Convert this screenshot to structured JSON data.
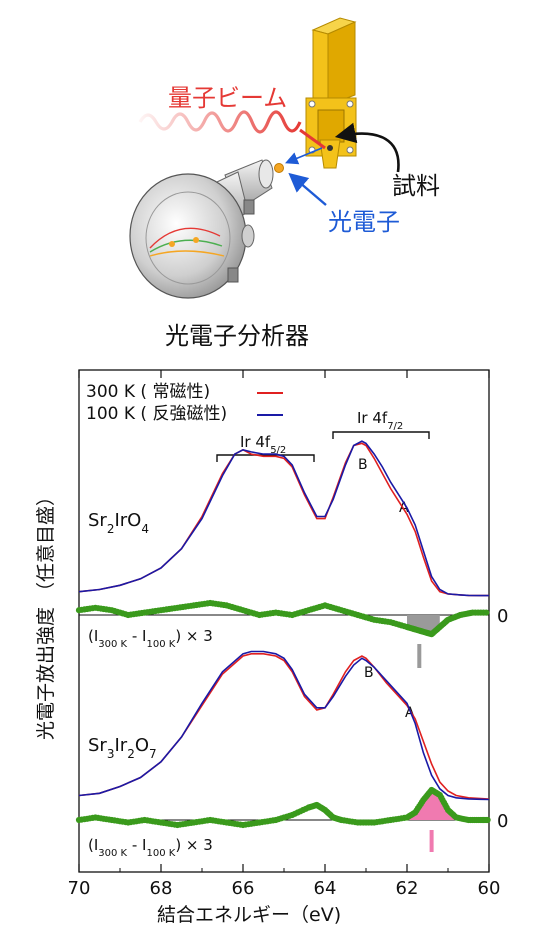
{
  "diagram": {
    "beam_label": "量子ビーム",
    "sample_label": "試料",
    "photoelectron_label": "光電子",
    "analyzer_label": "光電子分析器",
    "colors": {
      "beam": "#e53935",
      "photoelectron": "#1e5bd6",
      "holder": "#f3c21a"
    }
  },
  "chart_data": {
    "type": "line",
    "xlabel": "結合エネルギー（eV)",
    "ylabel": "光電子放出強度 （任意目盛）",
    "xlim": [
      70,
      60
    ],
    "xticks": [
      "70",
      "68",
      "66",
      "64",
      "62",
      "60"
    ],
    "x_reversed": true,
    "grid": false,
    "legend": {
      "placement": "top-left",
      "entries": [
        {
          "label": "300 K ( 常磁性)",
          "color": "#e02020"
        },
        {
          "label": "100 K ( 反強磁性)",
          "color": "#1a1aa6"
        }
      ]
    },
    "peak_labels": {
      "ir_4f52": "Ir 4f",
      "ir_4f52_sub": "5/2",
      "ir_4f72": "Ir 4f",
      "ir_4f72_sub": "7/2"
    },
    "panels": [
      {
        "compound": {
          "main1": "Sr",
          "sub1": "2",
          "main2": "IrO",
          "sub2": "4",
          "main3": "",
          "sub3": ""
        },
        "peak_a": "A",
        "peak_b": "B",
        "diff_label": {
          "p1": "(I",
          "s1": "300 K",
          "p2": " - I",
          "s2": "100 K",
          "p3": ") × 3"
        },
        "zero_label": "0",
        "diff_fill_color": "#9a9a9a",
        "series": [
          {
            "name": "300 K ( 常磁性)",
            "color": "#e02020",
            "x": [
              70,
              69.5,
              69,
              68.5,
              68,
              67.5,
              67,
              66.5,
              66.2,
              66,
              65.8,
              65.5,
              65.2,
              65,
              64.8,
              64.5,
              64.2,
              64,
              63.8,
              63.5,
              63.3,
              63.1,
              63,
              62.8,
              62.6,
              62.4,
              62.2,
              62,
              61.8,
              61.6,
              61.4,
              61.2,
              61,
              60.7,
              60.5,
              60.2,
              60
            ],
            "y": [
              0.02,
              0.03,
              0.05,
              0.08,
              0.13,
              0.22,
              0.37,
              0.57,
              0.66,
              0.68,
              0.66,
              0.65,
              0.65,
              0.64,
              0.6,
              0.47,
              0.36,
              0.36,
              0.46,
              0.62,
              0.7,
              0.71,
              0.7,
              0.64,
              0.57,
              0.5,
              0.44,
              0.38,
              0.3,
              0.18,
              0.07,
              0.02,
              0.01,
              0.005,
              0.003,
              0.002,
              0.002
            ]
          },
          {
            "name": "100 K ( 反強磁性)",
            "color": "#1a1aa6",
            "x": [
              70,
              69.5,
              69,
              68.5,
              68,
              67.5,
              67,
              66.5,
              66.2,
              66,
              65.8,
              65.5,
              65.2,
              65,
              64.8,
              64.5,
              64.2,
              64,
              63.8,
              63.5,
              63.3,
              63.1,
              63,
              62.8,
              62.6,
              62.4,
              62.2,
              62,
              61.8,
              61.6,
              61.4,
              61.2,
              61,
              60.7,
              60.5,
              60.2,
              60
            ],
            "y": [
              0.02,
              0.03,
              0.05,
              0.08,
              0.13,
              0.22,
              0.36,
              0.56,
              0.66,
              0.68,
              0.67,
              0.66,
              0.66,
              0.65,
              0.61,
              0.48,
              0.37,
              0.37,
              0.45,
              0.61,
              0.7,
              0.72,
              0.71,
              0.66,
              0.6,
              0.53,
              0.47,
              0.41,
              0.33,
              0.21,
              0.09,
              0.03,
              0.01,
              0.005,
              0.003,
              0.002,
              0.002
            ]
          }
        ],
        "diff": {
          "x": [
            70,
            69.6,
            69.2,
            68.8,
            68.4,
            68,
            67.6,
            67.2,
            66.8,
            66.4,
            66,
            65.6,
            65.2,
            64.8,
            64.4,
            64,
            63.6,
            63.2,
            62.8,
            62.4,
            62,
            61.8,
            61.6,
            61.4,
            61.2,
            61,
            60.7,
            60.4,
            60
          ],
          "y": [
            0.02,
            0.03,
            0.02,
            0.0,
            0.01,
            0.02,
            0.03,
            0.04,
            0.05,
            0.04,
            0.02,
            0.0,
            0.01,
            0.0,
            0.02,
            0.04,
            0.02,
            0.0,
            -0.02,
            -0.03,
            -0.05,
            -0.06,
            -0.07,
            -0.08,
            -0.05,
            -0.02,
            0.0,
            0.01,
            0.01
          ]
        },
        "marker_x": 61.7
      },
      {
        "compound": {
          "main1": "Sr",
          "sub1": "3",
          "main2": "Ir",
          "sub2": "2",
          "main3": "O",
          "sub3": "7"
        },
        "peak_a": "A",
        "peak_b": "B",
        "diff_label": {
          "p1": "(I",
          "s1": "300 K",
          "p2": " - I",
          "s2": "100 K",
          "p3": ") × 3"
        },
        "zero_label": "0",
        "diff_fill_color": "#f07ab0",
        "series": [
          {
            "name": "300 K ( 常磁性)",
            "color": "#e02020",
            "x": [
              70,
              69.5,
              69,
              68.5,
              68,
              67.5,
              67,
              66.5,
              66,
              65.8,
              65.5,
              65.2,
              65,
              64.8,
              64.5,
              64.2,
              64,
              63.8,
              63.5,
              63.3,
              63.1,
              63,
              62.8,
              62.5,
              62.2,
              62,
              61.8,
              61.6,
              61.4,
              61.2,
              61,
              60.8,
              60.5,
              60.2,
              60
            ],
            "y": [
              0.02,
              0.03,
              0.06,
              0.1,
              0.17,
              0.28,
              0.42,
              0.56,
              0.64,
              0.65,
              0.65,
              0.64,
              0.62,
              0.57,
              0.46,
              0.4,
              0.41,
              0.47,
              0.57,
              0.62,
              0.64,
              0.63,
              0.59,
              0.52,
              0.46,
              0.42,
              0.36,
              0.26,
              0.16,
              0.08,
              0.04,
              0.02,
              0.01,
              0.006,
              0.004
            ]
          },
          {
            "name": "100 K ( 反強磁性)",
            "color": "#1a1aa6",
            "x": [
              70,
              69.5,
              69,
              68.5,
              68,
              67.5,
              67,
              66.5,
              66,
              65.8,
              65.5,
              65.2,
              65,
              64.8,
              64.5,
              64.2,
              64,
              63.8,
              63.5,
              63.3,
              63.1,
              63,
              62.8,
              62.5,
              62.2,
              62,
              61.8,
              61.6,
              61.4,
              61.2,
              61,
              60.8,
              60.5,
              60.2,
              60
            ],
            "y": [
              0.02,
              0.03,
              0.06,
              0.1,
              0.17,
              0.28,
              0.43,
              0.57,
              0.65,
              0.66,
              0.66,
              0.65,
              0.63,
              0.58,
              0.47,
              0.41,
              0.41,
              0.46,
              0.55,
              0.6,
              0.63,
              0.62,
              0.59,
              0.53,
              0.47,
              0.43,
              0.34,
              0.21,
              0.11,
              0.05,
              0.02,
              0.01,
              0.005,
              0.003,
              0.002
            ]
          }
        ],
        "diff": {
          "x": [
            70,
            69.6,
            69.2,
            68.8,
            68.4,
            68,
            67.6,
            67.2,
            66.8,
            66.4,
            66,
            65.6,
            65.2,
            64.8,
            64.4,
            64.2,
            64,
            63.8,
            63.6,
            63.2,
            62.8,
            62.4,
            62,
            61.8,
            61.6,
            61.4,
            61.2,
            61,
            60.8,
            60.5,
            60.2,
            60
          ],
          "y": [
            0.0,
            0.01,
            0.0,
            -0.01,
            0.0,
            -0.01,
            -0.02,
            -0.01,
            0.0,
            -0.01,
            -0.02,
            -0.01,
            0.0,
            0.02,
            0.05,
            0.06,
            0.04,
            0.01,
            0.0,
            -0.01,
            -0.01,
            0.0,
            0.01,
            0.03,
            0.08,
            0.12,
            0.1,
            0.04,
            0.01,
            0.0,
            0.0,
            0.0
          ]
        },
        "marker_x": 61.4
      }
    ]
  }
}
